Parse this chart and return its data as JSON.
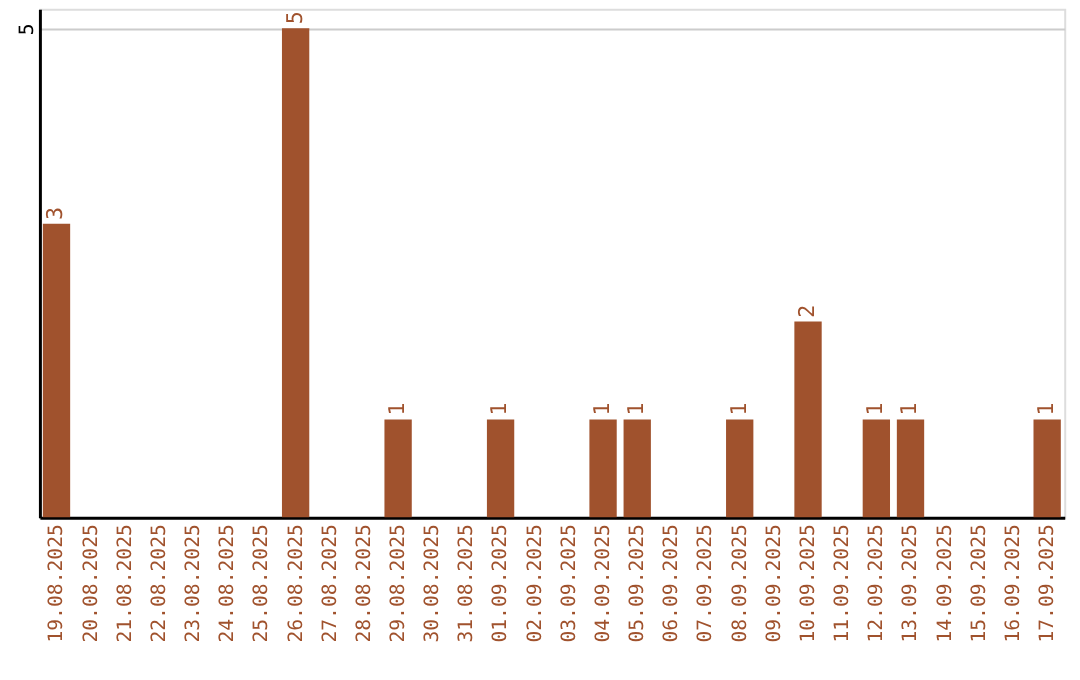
{
  "chart_data": {
    "type": "bar",
    "categories": [
      "19.08.2025",
      "20.08.2025",
      "21.08.2025",
      "22.08.2025",
      "23.08.2025",
      "24.08.2025",
      "25.08.2025",
      "26.08.2025",
      "27.08.2025",
      "28.08.2025",
      "29.08.2025",
      "30.08.2025",
      "31.08.2025",
      "01.09.2025",
      "02.09.2025",
      "03.09.2025",
      "04.09.2025",
      "05.09.2025",
      "06.09.2025",
      "07.09.2025",
      "08.09.2025",
      "09.09.2025",
      "10.09.2025",
      "11.09.2025",
      "12.09.2025",
      "13.09.2025",
      "14.09.2025",
      "15.09.2025",
      "16.09.2025",
      "17.09.2025"
    ],
    "values": [
      3,
      0,
      0,
      0,
      0,
      0,
      0,
      5,
      0,
      0,
      1,
      0,
      0,
      1,
      0,
      0,
      1,
      1,
      0,
      0,
      1,
      0,
      2,
      0,
      1,
      1,
      0,
      0,
      0,
      1
    ],
    "value_labels": [
      "3",
      null,
      null,
      null,
      null,
      null,
      null,
      "5",
      null,
      null,
      "1",
      null,
      null,
      "1",
      null,
      null,
      "1",
      "1",
      null,
      null,
      "1",
      null,
      "2",
      null,
      "1",
      "1",
      null,
      null,
      null,
      "1"
    ],
    "color": "#a0522d",
    "ylim": [
      0,
      5.2
    ],
    "yticks": [
      5
    ],
    "grid": "y"
  }
}
